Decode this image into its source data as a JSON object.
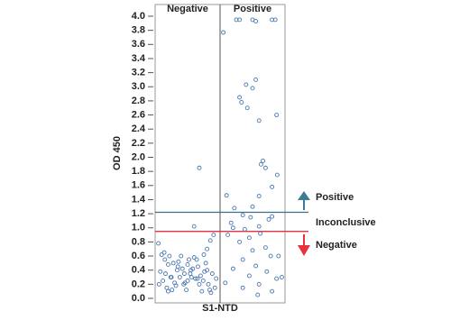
{
  "chart_data": {
    "type": "scatter",
    "y_label": "OD 450",
    "x_label": "S1-NTD",
    "xlim": [
      0,
      2
    ],
    "ylim": [
      0,
      4
    ],
    "yticks": [
      {
        "value": 0,
        "label": "0.0"
      },
      0.2,
      0.4,
      0.6,
      0.8,
      {
        "value": 1,
        "label": "1.0"
      },
      1.2,
      1.4,
      1.6,
      1.8,
      {
        "value": 2,
        "label": "2.0"
      },
      2.2,
      2.4,
      2.6,
      2.8,
      {
        "value": 3,
        "label": "3.0"
      },
      3.2,
      3.4,
      3.6,
      3.8,
      {
        "value": 4,
        "label": "4.0"
      }
    ],
    "series": [
      {
        "name": "Negative",
        "color": "#4a78b0",
        "x": [
          0.05,
          0.1,
          0.15,
          0.2,
          0.25,
          0.3,
          0.35,
          0.4,
          0.45,
          0.5,
          0.55,
          0.6,
          0.65,
          0.7,
          0.75,
          0.8,
          0.85,
          0.9,
          0.08,
          0.18,
          0.28,
          0.38,
          0.48,
          0.58,
          0.68,
          0.78,
          0.88,
          0.12,
          0.22,
          0.32,
          0.42,
          0.52,
          0.62,
          0.72,
          0.82,
          0.92,
          0.06,
          0.16,
          0.26,
          0.36,
          0.46,
          0.56,
          0.66,
          0.76,
          0.86,
          0.14,
          0.24,
          0.34,
          0.44,
          0.54,
          0.64,
          0.74,
          0.84,
          0.94,
          0.2,
          0.5,
          0.8,
          0.68,
          0.6
        ],
        "values": [
          0.78,
          0.62,
          0.55,
          0.48,
          0.3,
          0.22,
          0.45,
          0.6,
          0.35,
          0.25,
          0.4,
          0.58,
          0.28,
          0.32,
          0.62,
          0.7,
          0.82,
          0.9,
          0.38,
          0.15,
          0.5,
          0.3,
          0.12,
          0.42,
          0.2,
          0.5,
          0.35,
          0.25,
          0.6,
          0.18,
          0.42,
          0.55,
          0.28,
          0.1,
          0.2,
          0.15,
          0.2,
          0.35,
          0.12,
          0.52,
          0.22,
          0.3,
          0.45,
          0.38,
          0.08,
          0.65,
          0.3,
          0.4,
          0.2,
          0.35,
          0.55,
          0.25,
          0.12,
          0.28,
          0.1,
          0.48,
          0.4,
          1.85,
          1.02
        ]
      },
      {
        "name": "Positive",
        "color": "#4a78b0",
        "x": [
          1.25,
          1.3,
          1.5,
          1.55,
          1.8,
          1.85,
          1.05,
          1.55,
          1.4,
          1.5,
          1.3,
          1.33,
          1.42,
          1.87,
          1.6,
          1.66,
          1.63,
          1.7,
          1.88,
          1.8,
          1.1,
          1.6,
          1.5,
          1.22,
          1.35,
          1.47,
          1.8,
          1.75,
          1.17,
          1.6,
          1.2,
          1.38,
          1.62,
          1.12,
          1.45,
          1.3,
          1.7,
          1.5,
          1.78,
          1.9,
          1.35,
          1.55,
          1.2,
          1.72,
          1.45,
          1.87,
          1.08,
          1.6,
          1.35,
          1.8,
          1.58,
          1.95
        ],
        "values": [
          3.95,
          3.95,
          3.95,
          3.93,
          3.95,
          3.95,
          3.77,
          3.1,
          3.03,
          2.98,
          2.85,
          2.78,
          2.7,
          2.6,
          2.52,
          1.95,
          1.9,
          1.85,
          1.75,
          1.58,
          1.46,
          1.45,
          1.3,
          1.28,
          1.18,
          1.15,
          1.16,
          1.12,
          1.07,
          1.02,
          1.0,
          0.98,
          0.92,
          0.9,
          0.86,
          0.8,
          0.72,
          0.68,
          0.6,
          0.6,
          0.55,
          0.46,
          0.42,
          0.38,
          0.32,
          0.28,
          0.22,
          0.2,
          0.15,
          0.1,
          0.05,
          0.3
        ]
      }
    ],
    "thresholds": [
      {
        "value": 1.22,
        "color": "#3d6e8c"
      },
      {
        "value": 0.95,
        "color": "#e8323c"
      }
    ],
    "annotations": [
      "Positive",
      "Inconclusive",
      "Negative"
    ]
  }
}
